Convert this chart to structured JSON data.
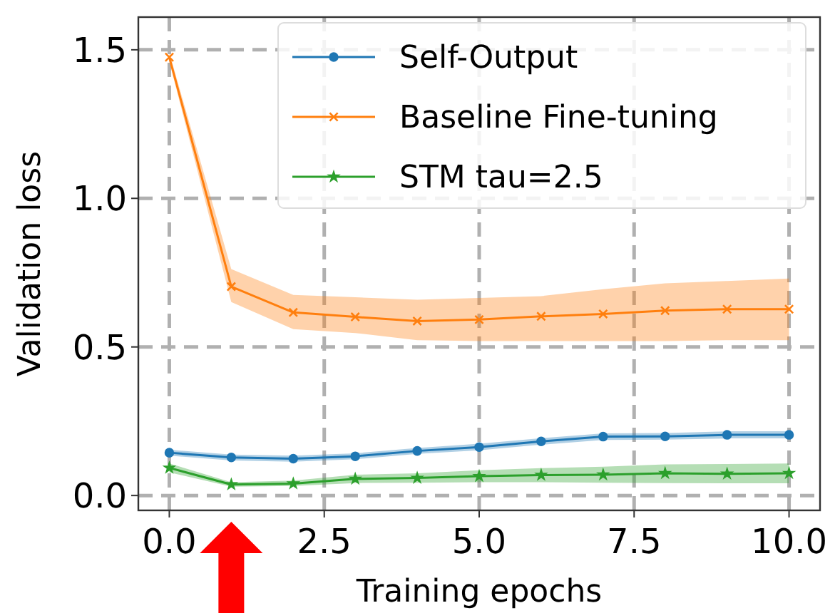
{
  "chart_data": {
    "type": "line",
    "xlabel": "Training epochs",
    "ylabel": "Validation loss",
    "x": [
      0,
      1,
      2,
      3,
      4,
      5,
      6,
      7,
      8,
      9,
      10
    ],
    "xlim": [
      -0.5,
      10.5
    ],
    "ylim": [
      -0.05,
      1.61
    ],
    "xticks": [
      {
        "value": 0,
        "label": "0.0"
      },
      {
        "value": 2.5,
        "label": "2.5"
      },
      {
        "value": 5,
        "label": "5.0"
      },
      {
        "value": 7.5,
        "label": "7.5"
      },
      {
        "value": 10,
        "label": "10.0"
      }
    ],
    "yticks": [
      {
        "value": 0,
        "label": "0.0"
      },
      {
        "value": 0.5,
        "label": "0.5"
      },
      {
        "value": 1,
        "label": "1.0"
      },
      {
        "value": 1.5,
        "label": "1.5"
      }
    ],
    "grid": true,
    "legend": "top right",
    "line_style": "solid",
    "series": [
      {
        "name": "Self-Output",
        "color": "#1f77b4",
        "marker": "circle",
        "values": [
          0.144,
          0.128,
          0.124,
          0.132,
          0.15,
          0.163,
          0.182,
          0.198,
          0.199,
          0.204,
          0.204
        ],
        "lower": [
          0.134,
          0.118,
          0.114,
          0.122,
          0.14,
          0.152,
          0.171,
          0.187,
          0.188,
          0.192,
          0.192
        ],
        "upper": [
          0.154,
          0.138,
          0.134,
          0.142,
          0.16,
          0.174,
          0.193,
          0.209,
          0.21,
          0.216,
          0.216
        ]
      },
      {
        "name": "Baseline Fine-tuning",
        "color": "#ff7f0e",
        "marker": "cross",
        "values": [
          1.475,
          0.703,
          0.616,
          0.601,
          0.587,
          0.592,
          0.603,
          0.611,
          0.622,
          0.627,
          0.627
        ],
        "lower": [
          1.46,
          0.651,
          0.56,
          0.547,
          0.523,
          0.52,
          0.52,
          0.52,
          0.52,
          0.523,
          0.523
        ],
        "upper": [
          1.49,
          0.762,
          0.675,
          0.667,
          0.659,
          0.665,
          0.671,
          0.694,
          0.714,
          0.722,
          0.73
        ]
      },
      {
        "name": "STM tau=2.5",
        "color": "#2ca02c",
        "marker": "star",
        "values": [
          0.093,
          0.037,
          0.04,
          0.056,
          0.059,
          0.065,
          0.069,
          0.07,
          0.075,
          0.073,
          0.075
        ],
        "lower": [
          0.078,
          0.03,
          0.032,
          0.042,
          0.043,
          0.045,
          0.045,
          0.043,
          0.042,
          0.041,
          0.041
        ],
        "upper": [
          0.108,
          0.045,
          0.05,
          0.07,
          0.075,
          0.085,
          0.092,
          0.097,
          0.105,
          0.106,
          0.108
        ]
      }
    ]
  }
}
